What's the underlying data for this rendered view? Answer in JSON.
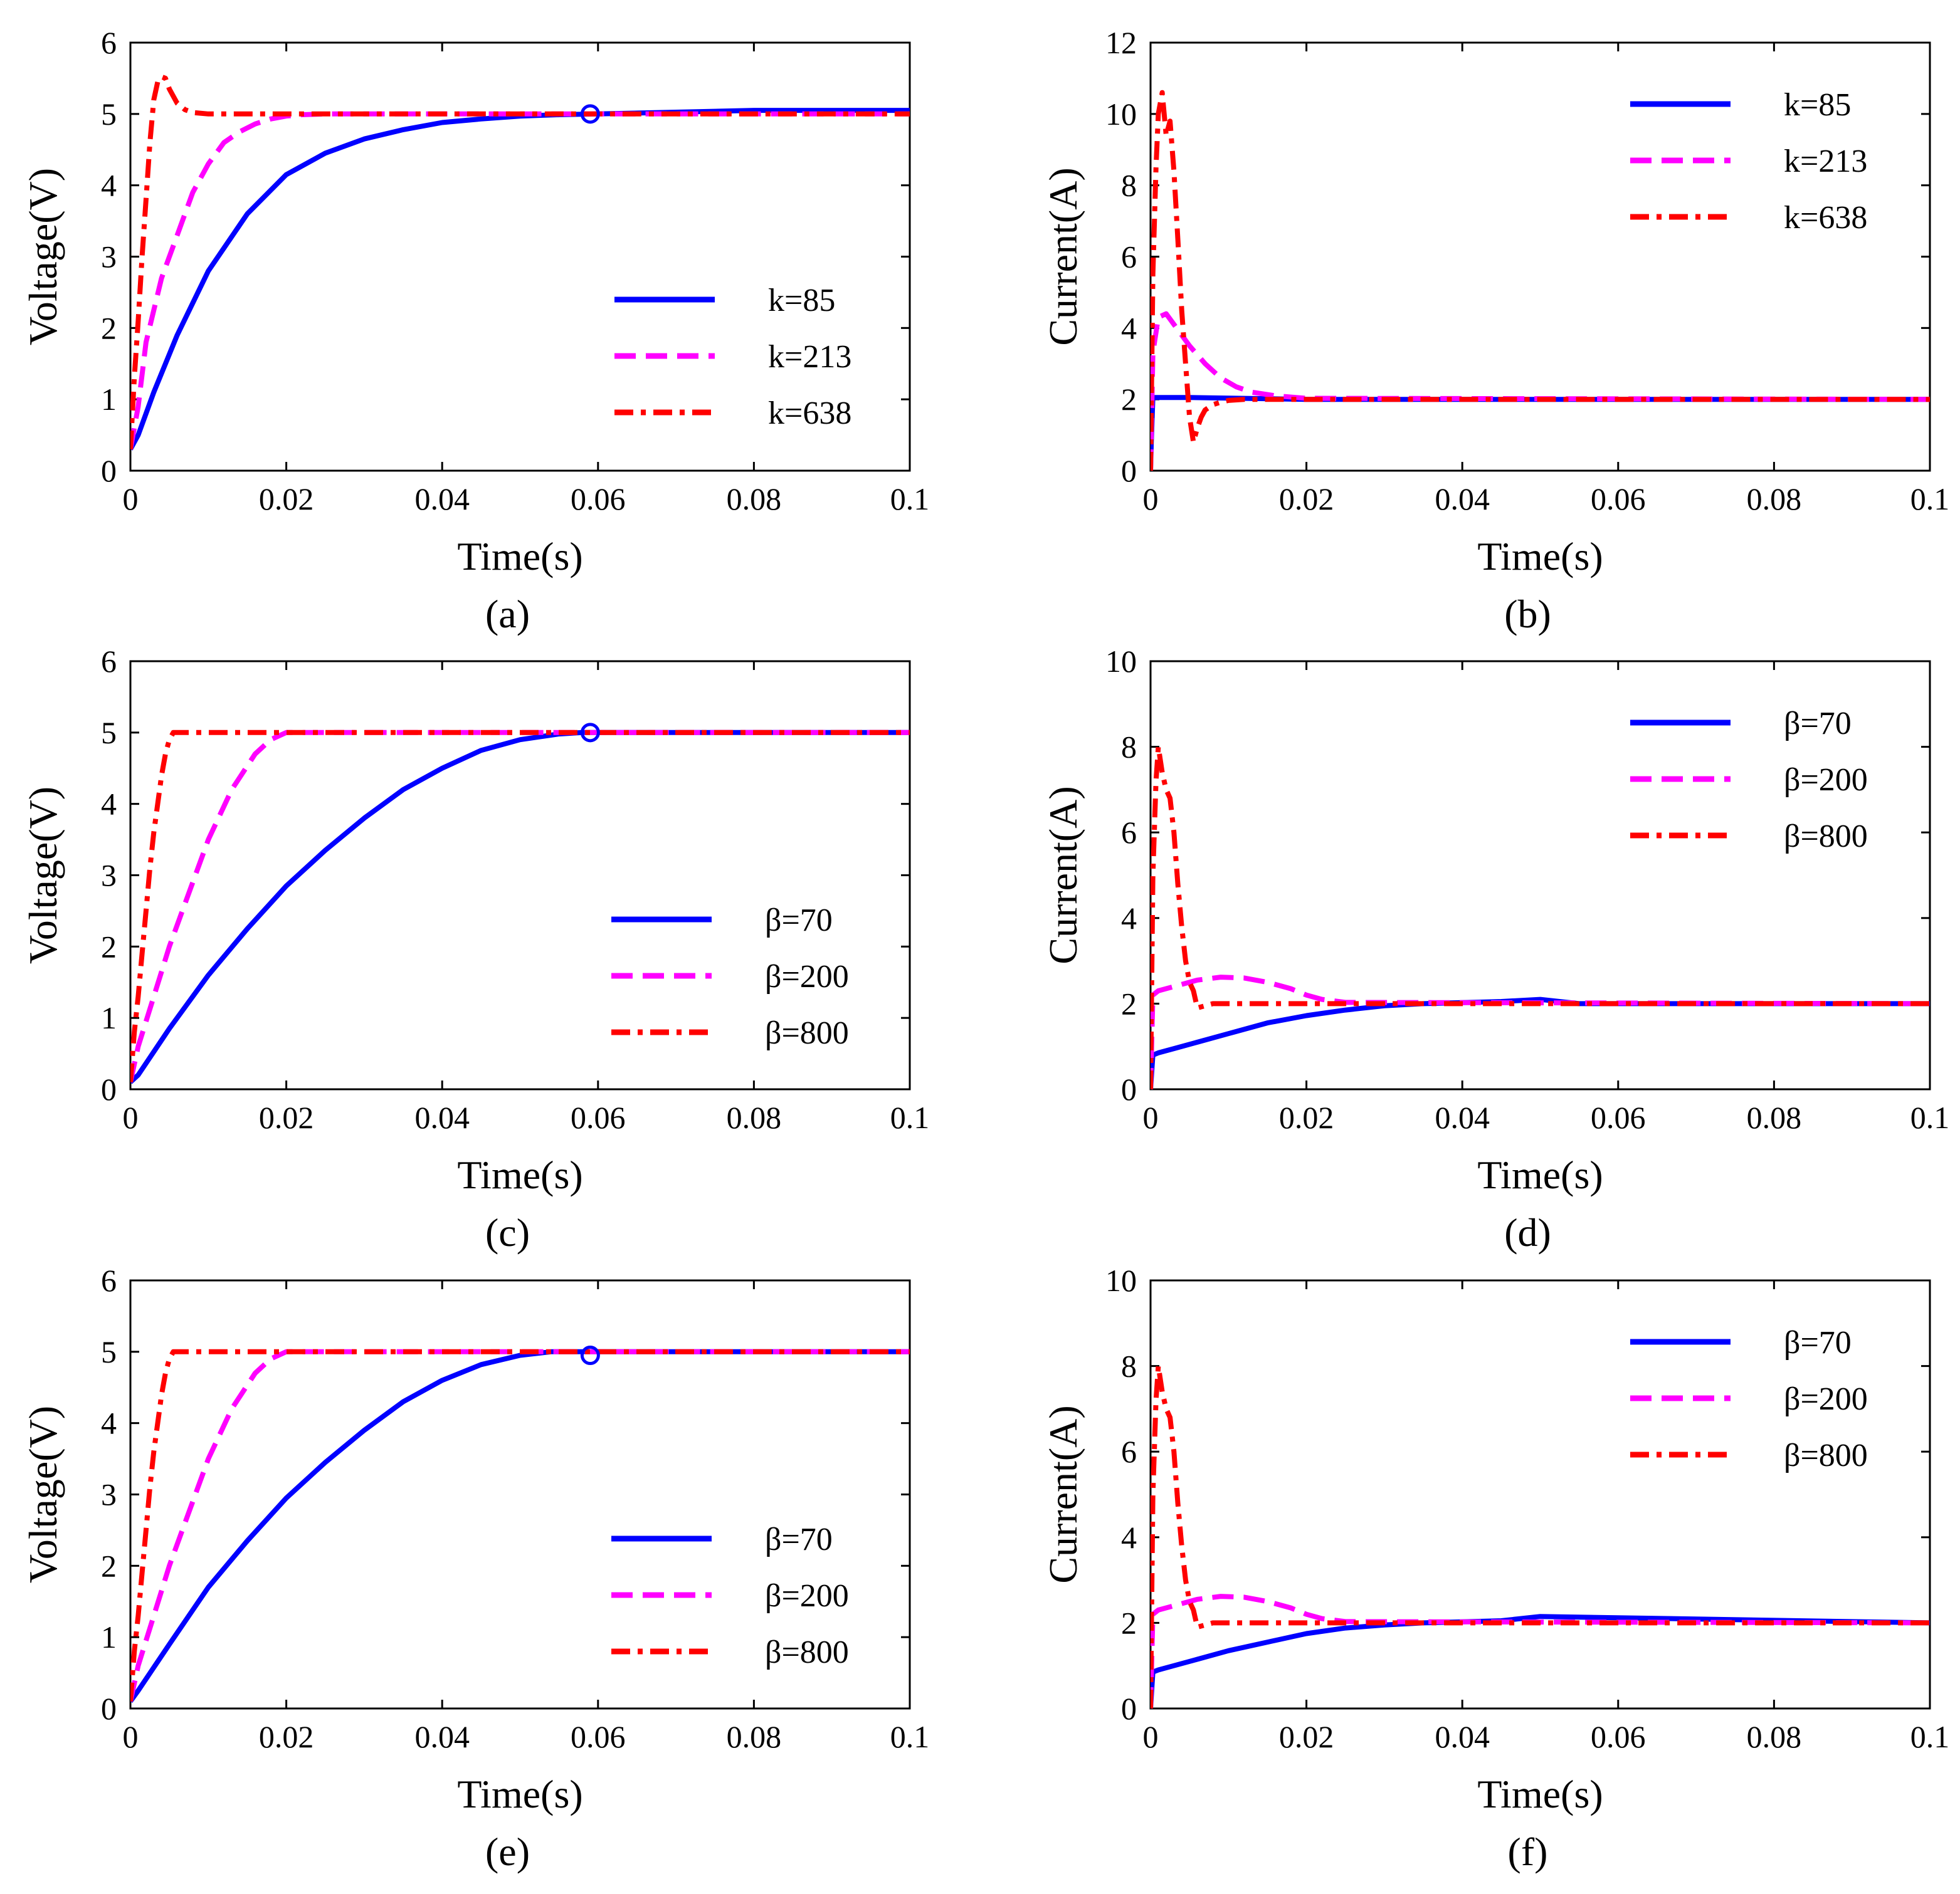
{
  "colors": {
    "blue": "#0000ff",
    "magenta": "#ff00ff",
    "red": "#ff0000"
  },
  "chart_data": [
    {
      "type": "line",
      "caption": "(a)",
      "xlabel": "Time(s)",
      "ylabel": "Voltage(V)",
      "xlim": [
        0,
        0.1
      ],
      "ylim": [
        0,
        6
      ],
      "xticks": [
        "0",
        "0.02",
        "0.04",
        "0.06",
        "0.08",
        "0.1"
      ],
      "yticks": [
        "0",
        "1",
        "2",
        "3",
        "4",
        "5",
        "6"
      ],
      "legend_position": "center-right",
      "marker": {
        "x": 0.059,
        "y": 5.0
      },
      "series": [
        {
          "name": "k=85",
          "color": "#0000ff",
          "dash": "solid",
          "x": [
            0,
            0.001,
            0.003,
            0.006,
            0.01,
            0.015,
            0.02,
            0.025,
            0.03,
            0.035,
            0.04,
            0.045,
            0.05,
            0.055,
            0.06,
            0.08,
            0.1
          ],
          "y": [
            0.3,
            0.5,
            1.1,
            1.9,
            2.8,
            3.6,
            4.15,
            4.45,
            4.65,
            4.78,
            4.88,
            4.93,
            4.97,
            4.99,
            5.0,
            5.05,
            5.05
          ]
        },
        {
          "name": "k=213",
          "color": "#ff00ff",
          "dash": "dashed",
          "x": [
            0,
            0.001,
            0.002,
            0.004,
            0.006,
            0.008,
            0.01,
            0.012,
            0.014,
            0.016,
            0.018,
            0.02,
            0.022,
            0.025,
            0.1
          ],
          "y": [
            0.3,
            0.9,
            1.8,
            2.7,
            3.3,
            3.9,
            4.3,
            4.6,
            4.75,
            4.86,
            4.93,
            4.97,
            4.99,
            5.0,
            5.0
          ]
        },
        {
          "name": "k=638",
          "color": "#ff0000",
          "dash": "dashdot",
          "x": [
            0,
            0.0005,
            0.001,
            0.0015,
            0.002,
            0.0025,
            0.003,
            0.0035,
            0.004,
            0.0045,
            0.005,
            0.006,
            0.007,
            0.008,
            0.01,
            0.012,
            0.1
          ],
          "y": [
            0.3,
            1.3,
            2.1,
            3.0,
            3.8,
            4.6,
            5.2,
            5.45,
            5.52,
            5.5,
            5.35,
            5.15,
            5.06,
            5.02,
            5.0,
            5.0,
            5.0
          ]
        }
      ]
    },
    {
      "type": "line",
      "caption": "(b)",
      "xlabel": "Time(s)",
      "ylabel": "Current(A)",
      "xlim": [
        0,
        0.1
      ],
      "ylim": [
        0,
        12
      ],
      "xticks": [
        "0",
        "0.02",
        "0.04",
        "0.06",
        "0.08",
        "0.1"
      ],
      "yticks": [
        "0",
        "2",
        "4",
        "6",
        "8",
        "10",
        "12"
      ],
      "legend_position": "top-right",
      "series": [
        {
          "name": "k=85",
          "color": "#0000ff",
          "dash": "solid",
          "x": [
            0,
            0.0001,
            0.0003,
            0.005,
            0.02,
            0.1
          ],
          "y": [
            0,
            0.8,
            2.05,
            2.05,
            2.0,
            2.0
          ]
        },
        {
          "name": "k=213",
          "color": "#ff00ff",
          "dash": "dashed",
          "x": [
            0,
            0.0003,
            0.001,
            0.002,
            0.003,
            0.005,
            0.007,
            0.009,
            0.011,
            0.013,
            0.016,
            0.02,
            0.1
          ],
          "y": [
            0,
            3.3,
            4.3,
            4.4,
            4.1,
            3.5,
            3.0,
            2.6,
            2.35,
            2.2,
            2.1,
            2.03,
            2.0
          ]
        },
        {
          "name": "k=638",
          "color": "#ff0000",
          "dash": "dashdot",
          "x": [
            0,
            0.0003,
            0.0007,
            0.001,
            0.0015,
            0.002,
            0.0025,
            0.003,
            0.0035,
            0.004,
            0.0045,
            0.005,
            0.0055,
            0.006,
            0.0065,
            0.007,
            0.008,
            0.009,
            0.01,
            0.012,
            0.015,
            0.1
          ],
          "y": [
            0,
            5.5,
            8.5,
            10.0,
            10.6,
            9.4,
            9.8,
            8.4,
            6.5,
            4.5,
            3.0,
            1.5,
            0.8,
            1.2,
            1.5,
            1.7,
            1.85,
            1.92,
            1.97,
            2.0,
            2.0,
            2.0
          ]
        }
      ]
    },
    {
      "type": "line",
      "caption": "(c)",
      "xlabel": "Time(s)",
      "ylabel": "Voltage(V)",
      "xlim": [
        0,
        0.1
      ],
      "ylim": [
        0,
        6
      ],
      "xticks": [
        "0",
        "0.02",
        "0.04",
        "0.06",
        "0.08",
        "0.1"
      ],
      "yticks": [
        "0",
        "1",
        "2",
        "3",
        "4",
        "5",
        "6"
      ],
      "legend_position": "bottom-right",
      "marker": {
        "x": 0.059,
        "y": 5.0
      },
      "series": [
        {
          "name": "β=70",
          "color": "#0000ff",
          "dash": "solid",
          "x": [
            0,
            0.001,
            0.005,
            0.01,
            0.015,
            0.02,
            0.025,
            0.03,
            0.035,
            0.04,
            0.045,
            0.05,
            0.055,
            0.058,
            0.1
          ],
          "y": [
            0.1,
            0.2,
            0.85,
            1.6,
            2.25,
            2.85,
            3.35,
            3.8,
            4.2,
            4.5,
            4.75,
            4.9,
            4.98,
            5.0,
            5.0
          ]
        },
        {
          "name": "β=200",
          "color": "#ff00ff",
          "dash": "dashed",
          "x": [
            0,
            0.001,
            0.003,
            0.005,
            0.008,
            0.01,
            0.013,
            0.016,
            0.018,
            0.02,
            0.021,
            0.1
          ],
          "y": [
            0.1,
            0.6,
            1.3,
            2.0,
            2.9,
            3.5,
            4.2,
            4.7,
            4.9,
            5.0,
            5.0,
            5.0
          ]
        },
        {
          "name": "β=800",
          "color": "#ff0000",
          "dash": "dashdot",
          "x": [
            0,
            0.0005,
            0.001,
            0.0015,
            0.002,
            0.0025,
            0.003,
            0.0035,
            0.004,
            0.0045,
            0.005,
            0.0055,
            0.006,
            0.1
          ],
          "y": [
            0.1,
            0.8,
            1.3,
            1.9,
            2.5,
            3.1,
            3.6,
            4.0,
            4.4,
            4.7,
            4.9,
            5.0,
            5.0,
            5.0
          ]
        }
      ]
    },
    {
      "type": "line",
      "caption": "(d)",
      "xlabel": "Time(s)",
      "ylabel": "Current(A)",
      "xlim": [
        0,
        0.1
      ],
      "ylim": [
        0,
        10
      ],
      "xticks": [
        "0",
        "0.02",
        "0.04",
        "0.06",
        "0.08",
        "0.1"
      ],
      "yticks": [
        "0",
        "2",
        "4",
        "6",
        "8",
        "10"
      ],
      "legend_position": "top-right",
      "series": [
        {
          "name": "β=70",
          "color": "#0000ff",
          "dash": "solid",
          "x": [
            0,
            0.0003,
            0.001,
            0.003,
            0.006,
            0.01,
            0.015,
            0.02,
            0.025,
            0.03,
            0.035,
            0.045,
            0.05,
            0.055,
            0.1
          ],
          "y": [
            0,
            0.8,
            0.85,
            0.95,
            1.1,
            1.3,
            1.55,
            1.72,
            1.85,
            1.95,
            2.0,
            2.05,
            2.1,
            2.0,
            2.0
          ]
        },
        {
          "name": "β=200",
          "color": "#ff00ff",
          "dash": "dashed",
          "x": [
            0,
            0.0003,
            0.001,
            0.003,
            0.006,
            0.009,
            0.012,
            0.015,
            0.018,
            0.02,
            0.022,
            0.025,
            0.1
          ],
          "y": [
            0,
            2.2,
            2.3,
            2.4,
            2.55,
            2.62,
            2.6,
            2.5,
            2.35,
            2.2,
            2.1,
            2.03,
            2.0
          ]
        },
        {
          "name": "β=800",
          "color": "#ff0000",
          "dash": "dashdot",
          "x": [
            0,
            0.0003,
            0.0007,
            0.001,
            0.0015,
            0.002,
            0.0025,
            0.003,
            0.0035,
            0.004,
            0.0045,
            0.005,
            0.0055,
            0.006,
            0.008,
            0.01,
            0.1
          ],
          "y": [
            0,
            5.0,
            7.2,
            8.0,
            7.4,
            7.0,
            6.8,
            6.0,
            4.8,
            3.8,
            3.0,
            2.5,
            2.3,
            1.9,
            2.0,
            2.0,
            2.0
          ]
        }
      ]
    },
    {
      "type": "line",
      "caption": "(e)",
      "xlabel": "Time(s)",
      "ylabel": "Voltage(V)",
      "xlim": [
        0,
        0.1
      ],
      "ylim": [
        0,
        6
      ],
      "xticks": [
        "0",
        "0.02",
        "0.04",
        "0.06",
        "0.08",
        "0.1"
      ],
      "yticks": [
        "0",
        "1",
        "2",
        "3",
        "4",
        "5",
        "6"
      ],
      "legend_position": "bottom-right",
      "marker": {
        "x": 0.059,
        "y": 4.95
      },
      "series": [
        {
          "name": "β=70",
          "color": "#0000ff",
          "dash": "solid",
          "x": [
            0,
            0.001,
            0.005,
            0.01,
            0.015,
            0.02,
            0.025,
            0.03,
            0.035,
            0.04,
            0.045,
            0.05,
            0.054,
            0.1
          ],
          "y": [
            0.1,
            0.25,
            0.9,
            1.7,
            2.35,
            2.95,
            3.45,
            3.9,
            4.3,
            4.6,
            4.82,
            4.95,
            5.0,
            5.0
          ]
        },
        {
          "name": "β=200",
          "color": "#ff00ff",
          "dash": "dashed",
          "x": [
            0,
            0.001,
            0.003,
            0.005,
            0.008,
            0.01,
            0.013,
            0.016,
            0.018,
            0.02,
            0.1
          ],
          "y": [
            0.1,
            0.6,
            1.3,
            2.0,
            2.9,
            3.5,
            4.2,
            4.7,
            4.9,
            5.0,
            5.0
          ]
        },
        {
          "name": "β=800",
          "color": "#ff0000",
          "dash": "dashdot",
          "x": [
            0,
            0.0005,
            0.001,
            0.0015,
            0.002,
            0.0025,
            0.003,
            0.0035,
            0.004,
            0.0045,
            0.005,
            0.0055,
            0.006,
            0.1
          ],
          "y": [
            0.1,
            0.8,
            1.3,
            1.9,
            2.5,
            3.1,
            3.6,
            4.0,
            4.4,
            4.7,
            4.9,
            5.0,
            5.0,
            5.0
          ]
        }
      ]
    },
    {
      "type": "line",
      "caption": "(f)",
      "xlabel": "Time(s)",
      "ylabel": "Current(A)",
      "xlim": [
        0,
        0.1
      ],
      "ylim": [
        0,
        10
      ],
      "xticks": [
        "0",
        "0.02",
        "0.04",
        "0.06",
        "0.08",
        "0.1"
      ],
      "yticks": [
        "0",
        "2",
        "4",
        "6",
        "8",
        "10"
      ],
      "legend_position": "top-right",
      "series": [
        {
          "name": "β=70",
          "color": "#0000ff",
          "dash": "solid",
          "x": [
            0,
            0.0003,
            0.001,
            0.003,
            0.006,
            0.01,
            0.015,
            0.02,
            0.025,
            0.03,
            0.035,
            0.045,
            0.05,
            0.1
          ],
          "y": [
            0,
            0.85,
            0.9,
            1.0,
            1.15,
            1.35,
            1.55,
            1.75,
            1.88,
            1.95,
            2.0,
            2.05,
            2.15,
            2.0
          ]
        },
        {
          "name": "β=200",
          "color": "#ff00ff",
          "dash": "dashed",
          "x": [
            0,
            0.0003,
            0.001,
            0.003,
            0.006,
            0.009,
            0.012,
            0.015,
            0.018,
            0.02,
            0.022,
            0.025,
            0.1
          ],
          "y": [
            0,
            2.2,
            2.3,
            2.4,
            2.55,
            2.62,
            2.6,
            2.5,
            2.35,
            2.2,
            2.1,
            2.03,
            2.0
          ]
        },
        {
          "name": "β=800",
          "color": "#ff0000",
          "dash": "dashdot",
          "x": [
            0,
            0.0003,
            0.0007,
            0.001,
            0.0015,
            0.002,
            0.0025,
            0.003,
            0.0035,
            0.004,
            0.0045,
            0.005,
            0.0055,
            0.006,
            0.008,
            0.01,
            0.1
          ],
          "y": [
            0,
            5.0,
            7.2,
            8.0,
            7.4,
            7.0,
            6.8,
            6.0,
            4.8,
            3.8,
            3.0,
            2.5,
            2.3,
            1.9,
            2.0,
            2.0,
            2.0
          ]
        }
      ]
    }
  ]
}
